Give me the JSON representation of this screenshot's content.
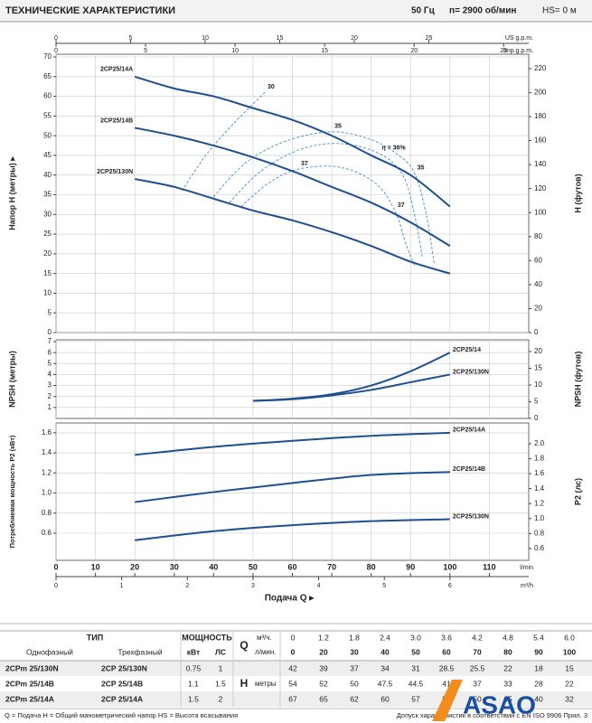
{
  "header": {
    "title": "ТЕХНИЧЕСКИЕ ХАРАКТЕРИСТИКИ",
    "frequency": "50 Гц",
    "speed": "n= 2900 об/мин",
    "suction": "HS= 0 м"
  },
  "flow_axes": [
    {
      "label": "US g.p.m.",
      "xlim": [
        0,
        31.7
      ],
      "xticks": [
        0,
        5,
        10,
        15,
        20,
        25
      ]
    },
    {
      "label": "Imp.g.p.m.",
      "xlim": [
        0,
        26.4
      ],
      "xticks": [
        0,
        5,
        10,
        15,
        20,
        25
      ]
    },
    {
      "label": "m³/h",
      "xlim": [
        0,
        7.2
      ],
      "xticks": [
        0,
        1,
        2,
        3,
        4,
        5,
        6
      ]
    }
  ],
  "x_title": "Подача Q ▸",
  "chart_data": [
    {
      "type": "line",
      "ylabel": "Напор H (метры) ▸",
      "y2label": "H (футов)",
      "x": [
        20,
        30,
        40,
        50,
        60,
        70,
        80,
        90,
        100
      ],
      "xlim": [
        0,
        120
      ],
      "ylim": [
        0,
        70
      ],
      "yticks": [
        0,
        5,
        10,
        15,
        20,
        25,
        30,
        35,
        40,
        45,
        50,
        55,
        60,
        65,
        70
      ],
      "y2lim": [
        0,
        229.7
      ],
      "y2ticks": [
        0,
        20,
        40,
        60,
        80,
        100,
        120,
        140,
        160,
        180,
        200,
        220
      ],
      "grid": true,
      "label_position": "start",
      "series": [
        {
          "name": "2CP25/14A",
          "color": "#1d4f91",
          "values": [
            65,
            62,
            60,
            57,
            54,
            50,
            45,
            40,
            32
          ]
        },
        {
          "name": "2CP25/14B",
          "color": "#1d4f91",
          "values": [
            52,
            50,
            47.5,
            44.5,
            41,
            37,
            33,
            28,
            22
          ]
        },
        {
          "name": "2CP25/130N",
          "color": "#1d4f91",
          "values": [
            39,
            37,
            34,
            31,
            28.5,
            25.5,
            22,
            18,
            15
          ]
        }
      ],
      "efficiency": {
        "color": "#3d8fd6",
        "curves": [
          {
            "label": "30",
            "x": [
              32,
              38,
              45,
              53
            ],
            "values": [
              36,
              45,
              53,
              61
            ]
          },
          {
            "label": "35",
            "x": [
              40,
              48,
              58,
              70,
              80,
              87,
              91,
              94,
              96
            ],
            "values": [
              34.5,
              43,
              48.5,
              51,
              49,
              45,
              40.5,
              30,
              17.5
            ]
          },
          {
            "label": "η = 36%",
            "x": [
              44,
              52,
              62,
              72,
              82,
              88,
              91,
              93
            ],
            "values": [
              33,
              41,
              46.5,
              48,
              45.5,
              40,
              30,
              19
            ]
          },
          {
            "label": "37",
            "x": [
              47,
              54,
              61.5,
              72,
              81,
              86,
              89,
              91
            ],
            "values": [
              32,
              38,
              41.5,
              42,
              38,
              31,
              22,
              17
            ]
          }
        ]
      }
    },
    {
      "type": "line",
      "ylabel": "NPSH (метры)",
      "y2label": "NPSH (футов)",
      "x": [
        50,
        60,
        70,
        80,
        90,
        100
      ],
      "xlim": [
        0,
        120
      ],
      "ylim": [
        0,
        7
      ],
      "yticks": [
        1,
        2,
        3,
        4,
        5,
        6,
        7
      ],
      "y2lim": [
        0,
        22.97
      ],
      "y2ticks": [
        0,
        5,
        10,
        15,
        20
      ],
      "grid": true,
      "label_position": "end",
      "series": [
        {
          "name": "2CP25/14",
          "color": "#1d4f91",
          "values": [
            1.6,
            1.8,
            2.2,
            3.0,
            4.3,
            6.0
          ]
        },
        {
          "name": "2CP25/130N",
          "color": "#1d4f91",
          "values": [
            1.6,
            1.75,
            2.1,
            2.6,
            3.3,
            4.0
          ]
        }
      ]
    },
    {
      "type": "line",
      "ylabel": "Потребляемая мощность P2 (кВт)",
      "y2label": "P2 (лс)",
      "x": [
        20,
        40,
        60,
        80,
        100
      ],
      "xlim": [
        0,
        120
      ],
      "xlabel": "l/min",
      "xticks": [
        0,
        10,
        20,
        30,
        40,
        50,
        60,
        70,
        80,
        90,
        100,
        110
      ],
      "ylim": [
        0.33,
        1.68
      ],
      "yticks": [
        0.6,
        0.8,
        {
          "value": 1,
          "label": "1.0"
        },
        1.2,
        1.4,
        1.6
      ],
      "y2lim": [
        0.4425,
        2.253
      ],
      "y2ticks": [
        0.6,
        0.8,
        {
          "value": 1,
          "label": "1.0"
        },
        1.2,
        1.4,
        1.6,
        1.8,
        {
          "value": 2,
          "label": "2.0"
        }
      ],
      "grid": true,
      "label_position": "end",
      "series": [
        {
          "name": "2CP25/14A",
          "color": "#1d4f91",
          "values": [
            1.38,
            1.46,
            1.52,
            1.57,
            1.6
          ]
        },
        {
          "name": "2CP25/14B",
          "color": "#1d4f91",
          "values": [
            0.91,
            1.01,
            1.1,
            1.18,
            1.21
          ]
        },
        {
          "name": "2CP25/130N",
          "color": "#1d4f91",
          "values": [
            0.53,
            0.62,
            0.68,
            0.72,
            0.74
          ]
        }
      ]
    }
  ],
  "table": {
    "type": "ТИП",
    "power": "МОЩНОСТЬ",
    "single": "Однофазный",
    "three": "Трехфазный",
    "kw": "кВт",
    "hp": "ЛС",
    "q": "Q",
    "q_m3h": "м³/ч.",
    "q_lmin": "л/мин.",
    "m3h": [
      "0",
      "1.2",
      "1.8",
      "2.4",
      "3.0",
      "3.6",
      "4.2",
      "4.8",
      "5.4",
      "6.0"
    ],
    "lmin": [
      "0",
      "20",
      "30",
      "40",
      "50",
      "60",
      "70",
      "80",
      "90",
      "100"
    ],
    "h": "H",
    "h_unit": "метры",
    "rows": [
      {
        "single": "2CPm 25/130N",
        "three": "2CP 25/130N",
        "kw": "0.75",
        "hp": "1",
        "h": [
          "42",
          "39",
          "37",
          "34",
          "31",
          "28.5",
          "25.5",
          "22",
          "18",
          "15"
        ]
      },
      {
        "single": "2CPm 25/14B",
        "three": "2CP 25/14B",
        "kw": "1.1",
        "hp": "1.5",
        "h": [
          "54",
          "52",
          "50",
          "47.5",
          "44.5",
          "41",
          "37",
          "33",
          "28",
          "22"
        ]
      },
      {
        "single": "2CPm 25/14A",
        "three": "2CP 25/14A",
        "kw": "1.5",
        "hp": "2",
        "h": [
          "67",
          "65",
          "62",
          "60",
          "57",
          "54",
          "50",
          "45",
          "40",
          "32"
        ]
      }
    ]
  },
  "footer": {
    "legend": "Q = Подача   H = Общий манометрический напор   HS = Высота всасывания",
    "tolerance": "Допуск характеристик в соответствии с EN ISO 9906 Прил. 3",
    "logo": "ASAO"
  }
}
